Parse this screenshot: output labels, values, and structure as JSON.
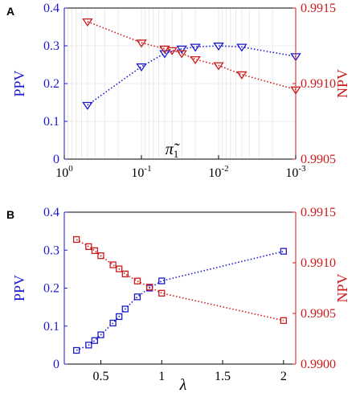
{
  "colors": {
    "ppv": "#1a1acc",
    "npv": "#cc1a1a",
    "axis": "#000000",
    "grid": "#dcdcdc"
  },
  "chart_data": [
    {
      "panel": "A",
      "type": "line",
      "xlabel": "π̃₁",
      "xscale": "log-reversed",
      "xlim": [
        1,
        0.001
      ],
      "x_ticks": [
        1,
        0.1,
        0.01,
        0.001
      ],
      "x_tick_labels": [
        {
          "base": "10",
          "exp": "0"
        },
        {
          "base": "10",
          "exp": "-1"
        },
        {
          "base": "10",
          "exp": "-2"
        },
        {
          "base": "10",
          "exp": "-3"
        }
      ],
      "grid": true,
      "left_axis": {
        "label": "PPV",
        "ylim": [
          0,
          0.4
        ],
        "ticks": [
          "0",
          "0.1",
          "0.2",
          "0.3",
          "0.4"
        ]
      },
      "right_axis": {
        "label": "NPV",
        "ylim": [
          0.9905,
          0.9915
        ],
        "ticks": [
          "0.9905",
          "0.9910",
          "0.9915"
        ]
      },
      "series": [
        {
          "axis": "left",
          "marker": "triangle-down",
          "x": [
            0.5,
            0.1,
            0.05,
            0.03,
            0.02,
            0.01,
            0.005,
            0.001
          ],
          "y": [
            0.143,
            0.245,
            0.28,
            0.292,
            0.297,
            0.3,
            0.297,
            0.272
          ]
        },
        {
          "axis": "right",
          "marker": "triangle-down",
          "x": [
            0.5,
            0.1,
            0.05,
            0.04,
            0.03,
            0.02,
            0.01,
            0.005,
            0.001
          ],
          "y": [
            0.99141,
            0.99127,
            0.99123,
            0.99122,
            0.9912,
            0.99116,
            0.99112,
            0.99106,
            0.99096
          ]
        }
      ]
    },
    {
      "panel": "B",
      "type": "line",
      "xlabel": "λ",
      "xlim": [
        0.2,
        2.1
      ],
      "x_ticks": [
        "0.5",
        "1",
        "1.5",
        "2"
      ],
      "grid": false,
      "left_axis": {
        "label": "PPV",
        "ylim": [
          0,
          0.4
        ],
        "ticks": [
          "0",
          "0.1",
          "0.2",
          "0.3",
          "0.4"
        ]
      },
      "right_axis": {
        "label": "NPV",
        "ylim": [
          0.99,
          0.9915
        ],
        "ticks": [
          "0.9900",
          "0.9905",
          "0.9910",
          "0.9915"
        ]
      },
      "series": [
        {
          "axis": "left",
          "marker": "square",
          "x": [
            0.3,
            0.4,
            0.45,
            0.5,
            0.6,
            0.65,
            0.7,
            0.8,
            0.9,
            1.0,
            2.0
          ],
          "y": [
            0.036,
            0.05,
            0.062,
            0.077,
            0.108,
            0.125,
            0.145,
            0.177,
            0.2,
            0.219,
            0.297
          ]
        },
        {
          "axis": "right",
          "marker": "square",
          "x": [
            0.3,
            0.4,
            0.45,
            0.5,
            0.6,
            0.65,
            0.7,
            0.8,
            0.9,
            1.0,
            2.0
          ],
          "y": [
            0.99123,
            0.99116,
            0.99112,
            0.99107,
            0.99098,
            0.99094,
            0.99089,
            0.99082,
            0.99076,
            0.9907,
            0.99043
          ]
        }
      ]
    }
  ]
}
